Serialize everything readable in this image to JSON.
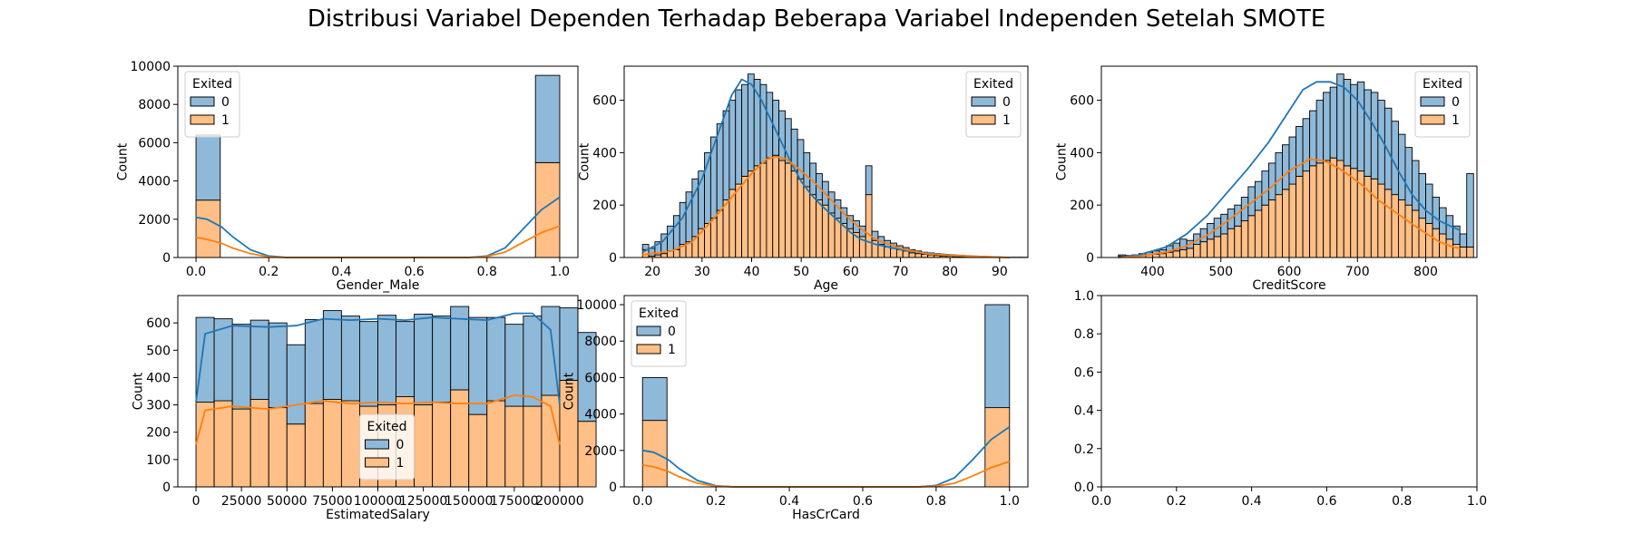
{
  "figure": {
    "title": "Distribusi Variabel Dependen Terhadap Beberapa Variabel Independen Setelah SMOTE"
  },
  "colors": {
    "class0": "#1f77b4",
    "class1": "#ff7f0e"
  },
  "chart_data": [
    {
      "type": "histogram-stacked",
      "xlabel": "Gender_Male",
      "ylabel": "Count",
      "xlim": [
        -0.05,
        1.05
      ],
      "ylim": [
        0,
        10000
      ],
      "xticks": [
        0.0,
        0.2,
        0.4,
        0.6,
        0.8,
        1.0
      ],
      "xtick_labels": [
        "0.0",
        "0.2",
        "0.4",
        "0.6",
        "0.8",
        "1.0"
      ],
      "yticks": [
        0,
        2000,
        4000,
        6000,
        8000,
        10000
      ],
      "ytick_labels": [
        "0",
        "2000",
        "4000",
        "6000",
        "8000",
        "10000"
      ],
      "bins": [
        {
          "x0": 0.0,
          "x1": 0.0667,
          "c0": 3400,
          "c1": 3000
        },
        {
          "x0": 0.9333,
          "x1": 1.0,
          "c0": 4560,
          "c1": 4960
        }
      ],
      "kde0": [
        [
          0,
          2100
        ],
        [
          0.03,
          2000
        ],
        [
          0.07,
          1600
        ],
        [
          0.1,
          1100
        ],
        [
          0.15,
          400
        ],
        [
          0.2,
          80
        ],
        [
          0.25,
          0
        ],
        [
          0.75,
          0
        ],
        [
          0.8,
          80
        ],
        [
          0.85,
          500
        ],
        [
          0.9,
          1500
        ],
        [
          0.95,
          2500
        ],
        [
          1.0,
          3150
        ]
      ],
      "kde1": [
        [
          0,
          1050
        ],
        [
          0.03,
          950
        ],
        [
          0.07,
          750
        ],
        [
          0.1,
          500
        ],
        [
          0.15,
          200
        ],
        [
          0.2,
          40
        ],
        [
          0.25,
          0
        ],
        [
          0.75,
          0
        ],
        [
          0.8,
          50
        ],
        [
          0.85,
          280
        ],
        [
          0.9,
          800
        ],
        [
          0.95,
          1300
        ],
        [
          1.0,
          1650
        ]
      ],
      "legend": {
        "title": "Exited",
        "labels": [
          "0",
          "1"
        ],
        "position": "upper left"
      }
    },
    {
      "type": "histogram-stacked",
      "xlabel": "Age",
      "ylabel": "Count",
      "xlim": [
        14.3,
        95.7
      ],
      "ylim": [
        0,
        730
      ],
      "xticks": [
        20,
        30,
        40,
        50,
        60,
        70,
        80,
        90
      ],
      "xtick_labels": [
        "20",
        "30",
        "40",
        "50",
        "60",
        "70",
        "80",
        "90"
      ],
      "yticks": [
        0,
        200,
        400,
        600
      ],
      "ytick_labels": [
        "0",
        "200",
        "400",
        "600"
      ],
      "binstart": 18,
      "binwidth": 1.25,
      "totals": [
        50,
        35,
        60,
        90,
        120,
        160,
        210,
        250,
        300,
        330,
        400,
        460,
        510,
        560,
        600,
        640,
        660,
        700,
        680,
        660,
        630,
        600,
        560,
        530,
        490,
        450,
        400,
        360,
        320,
        290,
        250,
        220,
        190,
        160,
        140,
        120,
        350,
        100,
        80,
        65,
        55,
        45,
        38,
        30,
        25,
        20,
        18,
        15,
        12,
        10,
        8,
        6,
        5,
        4,
        3,
        3,
        2,
        2,
        1,
        1,
        1,
        1
      ],
      "class1": [
        30,
        5,
        10,
        15,
        25,
        30,
        50,
        60,
        80,
        110,
        130,
        150,
        180,
        220,
        260,
        280,
        310,
        330,
        350,
        360,
        380,
        390,
        370,
        360,
        330,
        300,
        270,
        240,
        220,
        200,
        170,
        150,
        130,
        110,
        95,
        80,
        240,
        65,
        50,
        40,
        35,
        30,
        25,
        18,
        15,
        12,
        10,
        8,
        6,
        5,
        4,
        3,
        2,
        2,
        1,
        1,
        1,
        1,
        0,
        0,
        0,
        0
      ],
      "kde0": [
        [
          18,
          20
        ],
        [
          22,
          60
        ],
        [
          26,
          150
        ],
        [
          30,
          300
        ],
        [
          33,
          460
        ],
        [
          36,
          620
        ],
        [
          38,
          680
        ],
        [
          40,
          660
        ],
        [
          42,
          600
        ],
        [
          44,
          520
        ],
        [
          46,
          440
        ],
        [
          48,
          360
        ],
        [
          50,
          290
        ],
        [
          52,
          240
        ],
        [
          54,
          200
        ],
        [
          56,
          165
        ],
        [
          58,
          130
        ],
        [
          60,
          95
        ],
        [
          62,
          70
        ],
        [
          65,
          50
        ],
        [
          70,
          30
        ],
        [
          75,
          18
        ],
        [
          80,
          10
        ],
        [
          85,
          5
        ],
        [
          92,
          0
        ]
      ],
      "kde1": [
        [
          18,
          10
        ],
        [
          24,
          25
        ],
        [
          28,
          60
        ],
        [
          32,
          140
        ],
        [
          36,
          230
        ],
        [
          40,
          320
        ],
        [
          43,
          375
        ],
        [
          45,
          385
        ],
        [
          47,
          375
        ],
        [
          50,
          330
        ],
        [
          53,
          280
        ],
        [
          56,
          220
        ],
        [
          59,
          160
        ],
        [
          62,
          110
        ],
        [
          65,
          70
        ],
        [
          70,
          35
        ],
        [
          75,
          15
        ],
        [
          80,
          8
        ],
        [
          85,
          4
        ],
        [
          92,
          0
        ]
      ],
      "legend": {
        "title": "Exited",
        "labels": [
          "0",
          "1"
        ],
        "position": "upper right"
      }
    },
    {
      "type": "histogram-stacked",
      "xlabel": "CreditScore",
      "ylabel": "Count",
      "xlim": [
        325,
        875
      ],
      "ylim": [
        0,
        730
      ],
      "xticks": [
        400,
        500,
        600,
        700,
        800
      ],
      "xtick_labels": [
        "400",
        "500",
        "600",
        "700",
        "800"
      ],
      "yticks": [
        0,
        200,
        400,
        600
      ],
      "ytick_labels": [
        "0",
        "200",
        "400",
        "600"
      ],
      "binstart": 350,
      "binwidth": 10,
      "totals": [
        10,
        8,
        10,
        15,
        20,
        25,
        30,
        45,
        55,
        70,
        65,
        90,
        110,
        130,
        150,
        165,
        185,
        200,
        230,
        270,
        290,
        330,
        360,
        400,
        430,
        460,
        500,
        530,
        560,
        600,
        630,
        650,
        700,
        680,
        660,
        670,
        640,
        630,
        600,
        570,
        520,
        470,
        420,
        370,
        320,
        280,
        230,
        190,
        160,
        120,
        90,
        320
      ],
      "class1": [
        5,
        4,
        5,
        8,
        10,
        12,
        15,
        20,
        25,
        30,
        35,
        50,
        60,
        70,
        80,
        90,
        110,
        120,
        140,
        160,
        180,
        200,
        220,
        240,
        260,
        280,
        310,
        330,
        350,
        360,
        370,
        380,
        370,
        350,
        340,
        330,
        310,
        300,
        280,
        260,
        240,
        220,
        200,
        180,
        150,
        130,
        110,
        90,
        70,
        50,
        40,
        40
      ],
      "kde0": [
        [
          350,
          0
        ],
        [
          380,
          10
        ],
        [
          420,
          40
        ],
        [
          450,
          90
        ],
        [
          480,
          160
        ],
        [
          510,
          250
        ],
        [
          540,
          340
        ],
        [
          570,
          440
        ],
        [
          600,
          560
        ],
        [
          620,
          640
        ],
        [
          640,
          670
        ],
        [
          660,
          670
        ],
        [
          680,
          650
        ],
        [
          700,
          600
        ],
        [
          720,
          520
        ],
        [
          740,
          430
        ],
        [
          760,
          330
        ],
        [
          780,
          240
        ],
        [
          800,
          180
        ],
        [
          820,
          140
        ],
        [
          840,
          115
        ],
        [
          850,
          105
        ]
      ],
      "kde1": [
        [
          350,
          0
        ],
        [
          380,
          5
        ],
        [
          420,
          20
        ],
        [
          450,
          45
        ],
        [
          480,
          85
        ],
        [
          510,
          140
        ],
        [
          540,
          200
        ],
        [
          570,
          260
        ],
        [
          600,
          330
        ],
        [
          630,
          375
        ],
        [
          650,
          370
        ],
        [
          670,
          345
        ],
        [
          690,
          310
        ],
        [
          710,
          270
        ],
        [
          730,
          220
        ],
        [
          760,
          165
        ],
        [
          790,
          110
        ],
        [
          820,
          60
        ],
        [
          840,
          40
        ],
        [
          850,
          35
        ]
      ],
      "legend": {
        "title": "Exited",
        "labels": [
          "0",
          "1"
        ],
        "position": "upper right"
      }
    },
    {
      "type": "histogram-stacked",
      "xlabel": "EstimatedSalary",
      "ylabel": "Count",
      "xlim": [
        -10000,
        210000
      ],
      "ylim": [
        0,
        700
      ],
      "xticks": [
        0,
        25000,
        50000,
        75000,
        100000,
        125000,
        150000,
        175000,
        200000
      ],
      "xtick_labels": [
        "0",
        "25000",
        "50000",
        "75000",
        "100000",
        "125000",
        "150000",
        "175000",
        "200000"
      ],
      "yticks": [
        0,
        100,
        200,
        300,
        400,
        500,
        600
      ],
      "ytick_labels": [
        "0",
        "100",
        "200",
        "300",
        "400",
        "500",
        "600"
      ],
      "binstart": 0,
      "binwidth": 10000,
      "totals": [
        620,
        615,
        595,
        610,
        600,
        520,
        612,
        645,
        625,
        605,
        628,
        605,
        632,
        625,
        660,
        620,
        620,
        595,
        625,
        660,
        655,
        565
      ],
      "class1": [
        310,
        315,
        285,
        320,
        290,
        230,
        305,
        320,
        315,
        295,
        300,
        330,
        300,
        310,
        355,
        265,
        315,
        295,
        295,
        335,
        390,
        240
      ],
      "kde0": [
        [
          0,
          310
        ],
        [
          5000,
          560
        ],
        [
          20000,
          590
        ],
        [
          40000,
          585
        ],
        [
          55000,
          590
        ],
        [
          70000,
          615
        ],
        [
          85000,
          610
        ],
        [
          100000,
          615
        ],
        [
          115000,
          610
        ],
        [
          130000,
          620
        ],
        [
          145000,
          615
        ],
        [
          160000,
          610
        ],
        [
          175000,
          635
        ],
        [
          185000,
          635
        ],
        [
          195000,
          575
        ],
        [
          200000,
          300
        ]
      ],
      "kde1": [
        [
          0,
          155
        ],
        [
          5000,
          280
        ],
        [
          20000,
          295
        ],
        [
          40000,
          285
        ],
        [
          55000,
          300
        ],
        [
          70000,
          315
        ],
        [
          85000,
          305
        ],
        [
          100000,
          310
        ],
        [
          115000,
          305
        ],
        [
          130000,
          310
        ],
        [
          145000,
          305
        ],
        [
          160000,
          305
        ],
        [
          175000,
          335
        ],
        [
          185000,
          330
        ],
        [
          195000,
          295
        ],
        [
          200000,
          155
        ]
      ],
      "legend": {
        "title": "Exited",
        "labels": [
          "0",
          "1"
        ],
        "position": "lower center"
      }
    },
    {
      "type": "histogram-stacked",
      "xlabel": "HasCrCard",
      "ylabel": "Count",
      "xlim": [
        -0.05,
        1.05
      ],
      "ylim": [
        0,
        10500
      ],
      "xticks": [
        0.0,
        0.2,
        0.4,
        0.6,
        0.8,
        1.0
      ],
      "xtick_labels": [
        "0.0",
        "0.2",
        "0.4",
        "0.6",
        "0.8",
        "1.0"
      ],
      "yticks": [
        0,
        2000,
        4000,
        6000,
        8000,
        10000
      ],
      "ytick_labels": [
        "0",
        "2000",
        "4000",
        "6000",
        "8000",
        "10000"
      ],
      "bins": [
        {
          "x0": 0.0,
          "x1": 0.0667,
          "c0": 2350,
          "c1": 3650
        },
        {
          "x0": 0.9333,
          "x1": 1.0,
          "c0": 5650,
          "c1": 4350
        }
      ],
      "kde0": [
        [
          0,
          2000
        ],
        [
          0.03,
          1900
        ],
        [
          0.07,
          1500
        ],
        [
          0.1,
          1000
        ],
        [
          0.15,
          350
        ],
        [
          0.2,
          60
        ],
        [
          0.25,
          0
        ],
        [
          0.75,
          0
        ],
        [
          0.8,
          80
        ],
        [
          0.85,
          500
        ],
        [
          0.9,
          1500
        ],
        [
          0.95,
          2600
        ],
        [
          1.0,
          3300
        ]
      ],
      "kde1": [
        [
          0,
          1200
        ],
        [
          0.03,
          1100
        ],
        [
          0.07,
          850
        ],
        [
          0.1,
          550
        ],
        [
          0.15,
          200
        ],
        [
          0.2,
          40
        ],
        [
          0.25,
          0
        ],
        [
          0.75,
          0
        ],
        [
          0.8,
          40
        ],
        [
          0.85,
          200
        ],
        [
          0.9,
          600
        ],
        [
          0.95,
          1050
        ],
        [
          1.0,
          1400
        ]
      ],
      "legend": {
        "title": "Exited",
        "labels": [
          "0",
          "1"
        ],
        "position": "upper left"
      }
    },
    {
      "type": "empty",
      "xlim": [
        0,
        1
      ],
      "ylim": [
        0,
        1
      ],
      "xticks": [
        0.0,
        0.2,
        0.4,
        0.6,
        0.8,
        1.0
      ],
      "xtick_labels": [
        "0.0",
        "0.2",
        "0.4",
        "0.6",
        "0.8",
        "1.0"
      ],
      "yticks": [
        0.0,
        0.2,
        0.4,
        0.6,
        0.8,
        1.0
      ],
      "ytick_labels": [
        "0.0",
        "0.2",
        "0.4",
        "0.6",
        "0.8",
        "1.0"
      ]
    }
  ]
}
